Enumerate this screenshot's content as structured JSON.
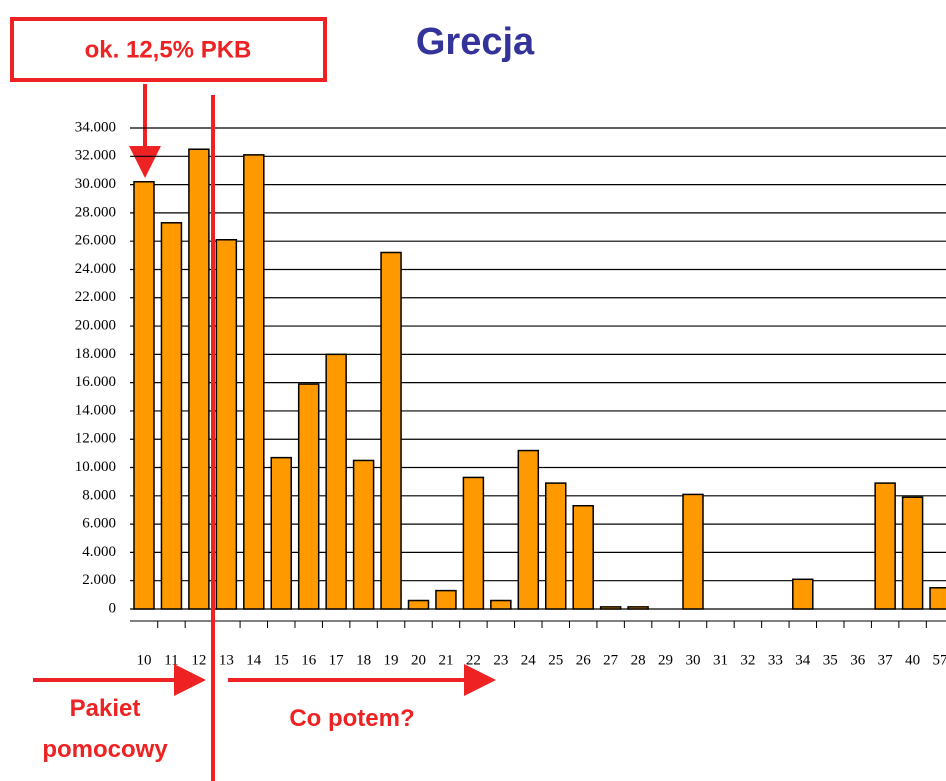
{
  "chart_data": {
    "type": "bar",
    "title": "Grecja",
    "categories": [
      "10",
      "11",
      "12",
      "13",
      "14",
      "15",
      "16",
      "17",
      "18",
      "19",
      "20",
      "21",
      "22",
      "23",
      "24",
      "25",
      "26",
      "27",
      "28",
      "29",
      "30",
      "31",
      "32",
      "33",
      "34",
      "35",
      "36",
      "37",
      "40",
      "57"
    ],
    "values": [
      30200,
      27300,
      32500,
      26100,
      32100,
      10700,
      15900,
      18000,
      10500,
      25200,
      600,
      1300,
      9300,
      600,
      11200,
      8900,
      7300,
      150,
      150,
      0,
      8100,
      0,
      0,
      0,
      2100,
      0,
      0,
      8900,
      7900,
      1500
    ],
    "color": "#ff9900",
    "ylim": [
      0,
      34000
    ],
    "yticks": [
      0,
      {
        "value": 2000,
        "label": "2.000"
      },
      {
        "value": 4000,
        "label": "4.000"
      },
      {
        "value": 6000,
        "label": "6.000"
      },
      {
        "value": 8000,
        "label": "8.000"
      },
      {
        "value": 10000,
        "label": "10.000"
      },
      {
        "value": 12000,
        "label": "12.000"
      },
      {
        "value": 14000,
        "label": "14.000"
      },
      {
        "value": 16000,
        "label": "16.000"
      },
      {
        "value": 18000,
        "label": "18.000"
      },
      {
        "value": 20000,
        "label": "20.000"
      },
      {
        "value": 22000,
        "label": "22.000"
      },
      {
        "value": 24000,
        "label": "24.000"
      },
      {
        "value": 26000,
        "label": "26.000"
      },
      {
        "value": 28000,
        "label": "28.000"
      },
      {
        "value": 30000,
        "label": "30.000"
      },
      {
        "value": 32000,
        "label": "32.000"
      },
      {
        "value": 34000,
        "label": "34.000"
      }
    ],
    "grid": true,
    "annotations": {
      "box": "ok. 12,5% PKB",
      "left": [
        "Pakiet",
        "pomocowy"
      ],
      "right": "Co potem?"
    }
  }
}
